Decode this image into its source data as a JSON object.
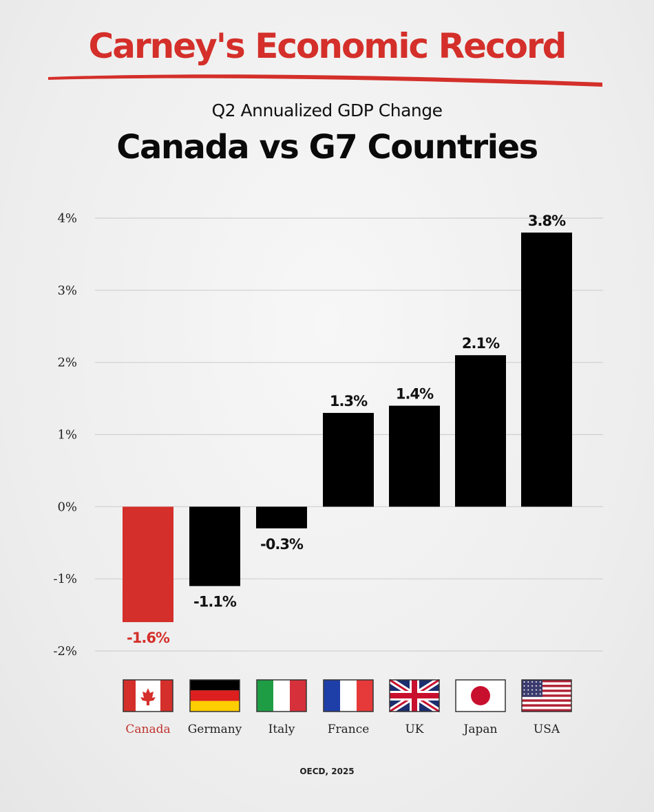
{
  "header": {
    "headline": "Carney's Economic Record",
    "subtitle": "Q2 Annualized GDP Change",
    "title": "Canada vs G7 Countries"
  },
  "source": "OECD, 2025",
  "colors": {
    "accent": "#d42f2a",
    "bar": "#000000",
    "highlight_bar": "#d42f2a",
    "gridline": "#cfcfcf"
  },
  "chart_data": {
    "type": "bar",
    "title": "Canada vs G7 Countries",
    "subtitle": "Q2 Annualized GDP Change",
    "xlabel": "",
    "ylabel": "",
    "categories": [
      "Canada",
      "Germany",
      "Italy",
      "France",
      "UK",
      "Japan",
      "USA"
    ],
    "values": [
      -1.6,
      -1.1,
      -0.3,
      1.3,
      1.4,
      2.1,
      3.8
    ],
    "value_labels": [
      "-1.6%",
      "-1.1%",
      "-0.3%",
      "1.3%",
      "1.4%",
      "2.1%",
      "3.8%"
    ],
    "highlight": "Canada",
    "ylim": [
      -2,
      4
    ],
    "yticks": [
      4,
      3,
      2,
      1,
      0,
      -1,
      -2
    ],
    "ytick_labels": [
      "4%",
      "3%",
      "2%",
      "1%",
      "0%",
      "-1%",
      "-2%"
    ],
    "grid": true,
    "legend": "none",
    "flag_icons": [
      "canada-flag-icon",
      "germany-flag-icon",
      "italy-flag-icon",
      "france-flag-icon",
      "uk-flag-icon",
      "japan-flag-icon",
      "usa-flag-icon"
    ]
  }
}
